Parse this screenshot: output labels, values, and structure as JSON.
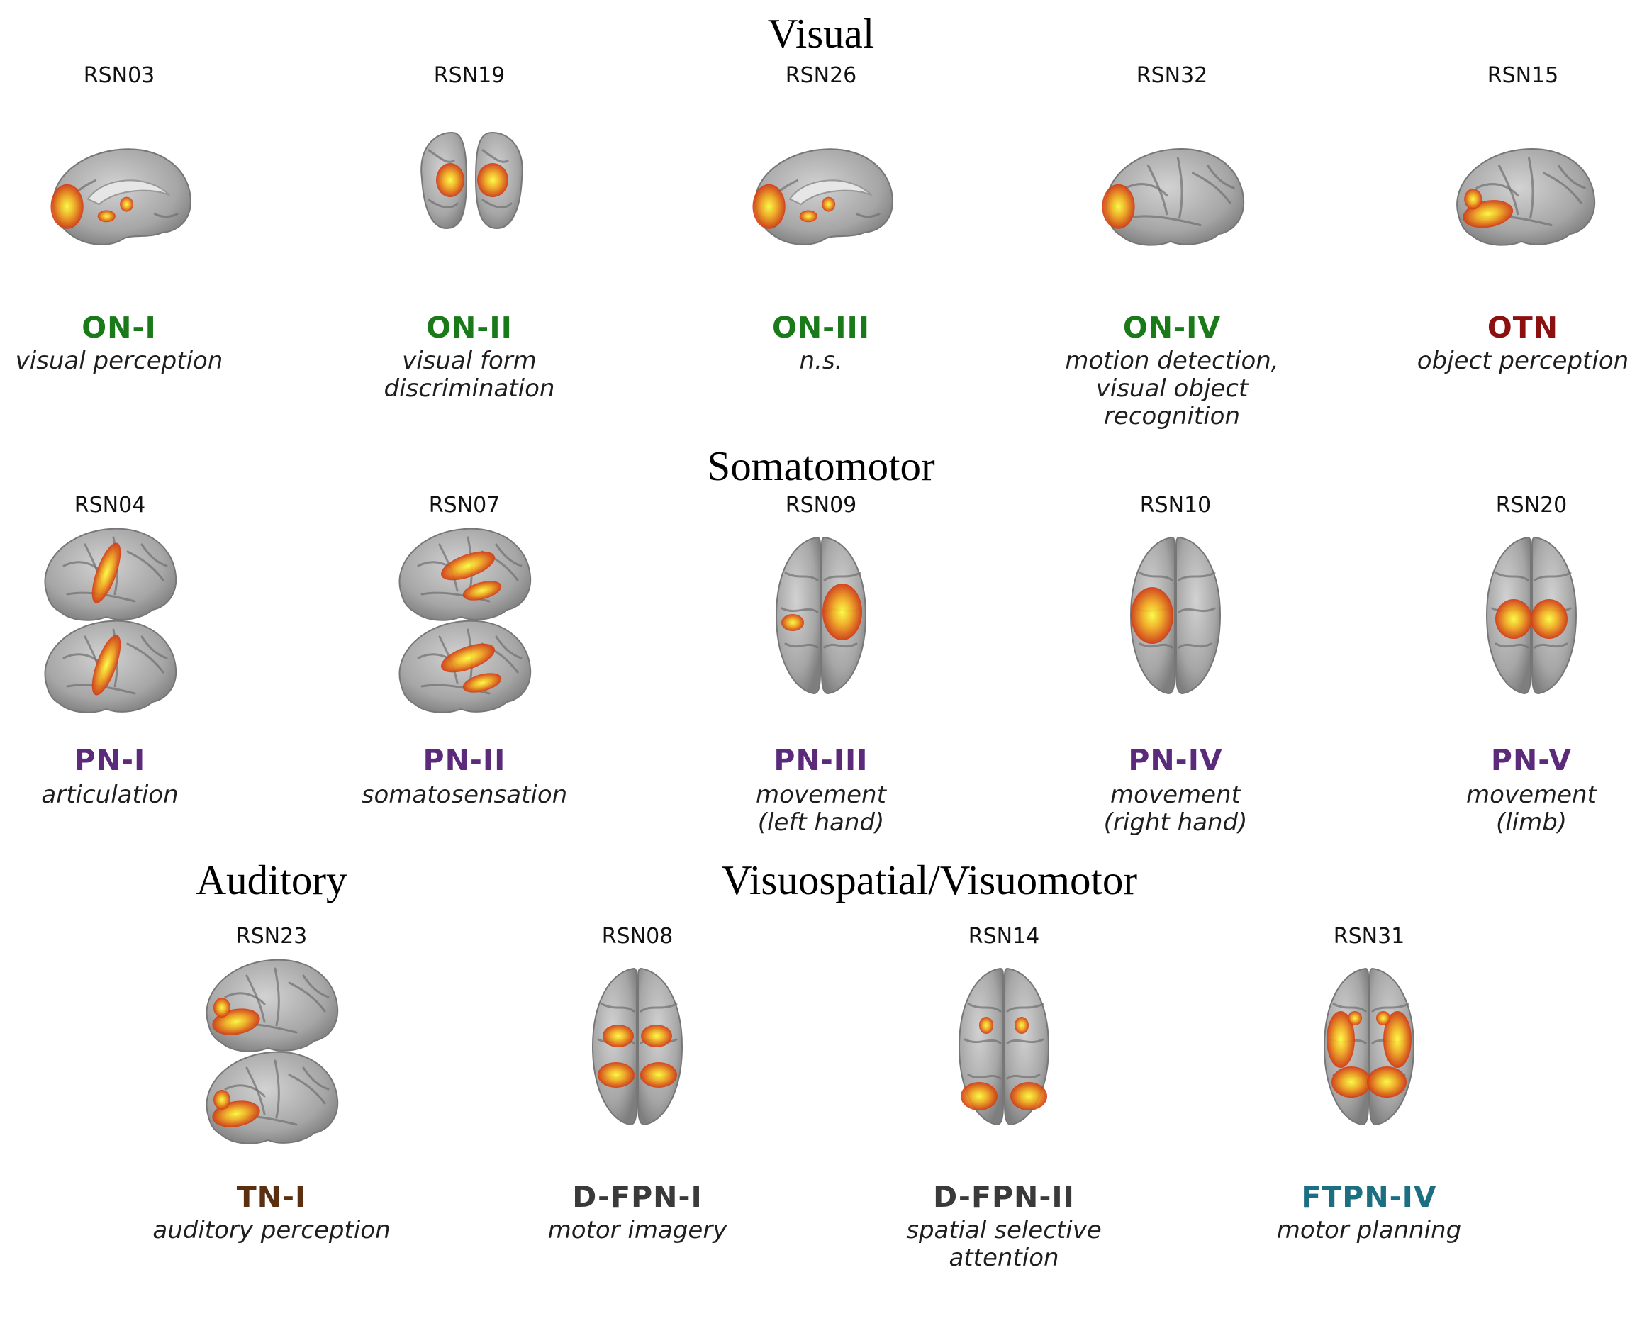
{
  "sections": [
    {
      "id": "visual",
      "title": "Visual"
    },
    {
      "id": "somatomotor",
      "title": "Somatomotor"
    },
    {
      "id": "auditory",
      "title": "Auditory"
    },
    {
      "id": "visuospatial",
      "title": "Visuospatial/Visuomotor"
    }
  ],
  "panels": [
    {
      "rsn": "RSN03",
      "network": "ON-I",
      "network_color": "#1a7a1a",
      "function": "visual perception",
      "view": "medial",
      "spots": "occipital"
    },
    {
      "rsn": "RSN19",
      "network": "ON-II",
      "network_color": "#1a7a1a",
      "function": "visual form\ndiscrimination",
      "view": "posterior",
      "spots": "bilateral"
    },
    {
      "rsn": "RSN26",
      "network": "ON-III",
      "network_color": "#1a7a1a",
      "function": "n.s.",
      "view": "medial",
      "spots": "occipital"
    },
    {
      "rsn": "RSN32",
      "network": "ON-IV",
      "network_color": "#1a7a1a",
      "function": "motion detection,\nvisual object\nrecognition",
      "view": "lateral",
      "spots": "occipital"
    },
    {
      "rsn": "RSN15",
      "network": "OTN",
      "network_color": "#8b1010",
      "function": "object perception",
      "view": "lateral",
      "spots": "temporal"
    },
    {
      "rsn": "RSN04",
      "network": "PN-I",
      "network_color": "#5b2a7a",
      "function": "articulation",
      "view": "lateral-pair",
      "spots": "central"
    },
    {
      "rsn": "RSN07",
      "network": "PN-II",
      "network_color": "#5b2a7a",
      "function": "somatosensation",
      "view": "lateral-pair",
      "spots": "parietal"
    },
    {
      "rsn": "RSN09",
      "network": "PN-III",
      "network_color": "#5b2a7a",
      "function": "movement\n(left hand)",
      "view": "dorsal",
      "spots": "right"
    },
    {
      "rsn": "RSN10",
      "network": "PN-IV",
      "network_color": "#5b2a7a",
      "function": "movement\n(right hand)",
      "view": "dorsal",
      "spots": "left"
    },
    {
      "rsn": "RSN20",
      "network": "PN-V",
      "network_color": "#5b2a7a",
      "function": "movement\n(limb)",
      "view": "dorsal",
      "spots": "center"
    },
    {
      "rsn": "RSN23",
      "network": "TN-I",
      "network_color": "#5a3010",
      "function": "auditory perception",
      "view": "lateral-pair",
      "spots": "temporal"
    },
    {
      "rsn": "RSN08",
      "network": "D-FPN-I",
      "network_color": "#3a3a3a",
      "function": "motor imagery",
      "view": "dorsal",
      "spots": "bilateral"
    },
    {
      "rsn": "RSN14",
      "network": "D-FPN-II",
      "network_color": "#3a3a3a",
      "function": "spatial selective\nattention",
      "view": "dorsal",
      "spots": "posterior"
    },
    {
      "rsn": "RSN31",
      "network": "FTPN-IV",
      "network_color": "#1b6f80",
      "function": "motor planning",
      "view": "dorsal",
      "spots": "frontoparietal"
    }
  ]
}
